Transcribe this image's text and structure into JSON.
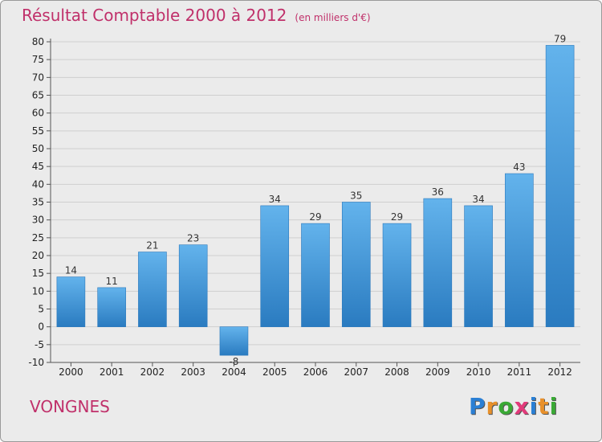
{
  "header": {
    "title": "Résultat Comptable 2000 à 2012",
    "unit": "(en milliers d'€)"
  },
  "footer": {
    "commune": "VONGNES",
    "logo": [
      "P",
      "r",
      "o",
      "x",
      "i",
      "t",
      "i"
    ],
    "logo_colors": [
      "#2a7fd4",
      "#e8902a",
      "#3aa935",
      "#e23a7a",
      "#2a7fd4",
      "#e8902a",
      "#3aa935"
    ]
  },
  "colors": {
    "bar_top": "#63b3ec",
    "bar_bottom": "#2a7bc0",
    "title": "#c0306a",
    "gridline": "#cfcfcf"
  },
  "chart_data": {
    "type": "bar",
    "title": "Résultat Comptable 2000 à 2012",
    "subtitle": "(en milliers d'€)",
    "categories": [
      "2000",
      "2001",
      "2002",
      "2003",
      "2004",
      "2005",
      "2006",
      "2007",
      "2008",
      "2009",
      "2010",
      "2011",
      "2012"
    ],
    "values": [
      14,
      11,
      21,
      23,
      -8,
      34,
      29,
      35,
      29,
      36,
      34,
      43,
      79
    ],
    "value_labels": [
      "14",
      "11",
      "21",
      "23",
      "-8",
      "34",
      "29",
      "35",
      "29",
      "36",
      "34",
      "43",
      "79"
    ],
    "ylim": [
      -10,
      80
    ],
    "yticks": [
      "-10",
      "-5",
      "0",
      "5",
      "10",
      "15",
      "20",
      "25",
      "30",
      "35",
      "40",
      "45",
      "50",
      "55",
      "60",
      "65",
      "70",
      "75",
      "80"
    ],
    "grid": true
  }
}
